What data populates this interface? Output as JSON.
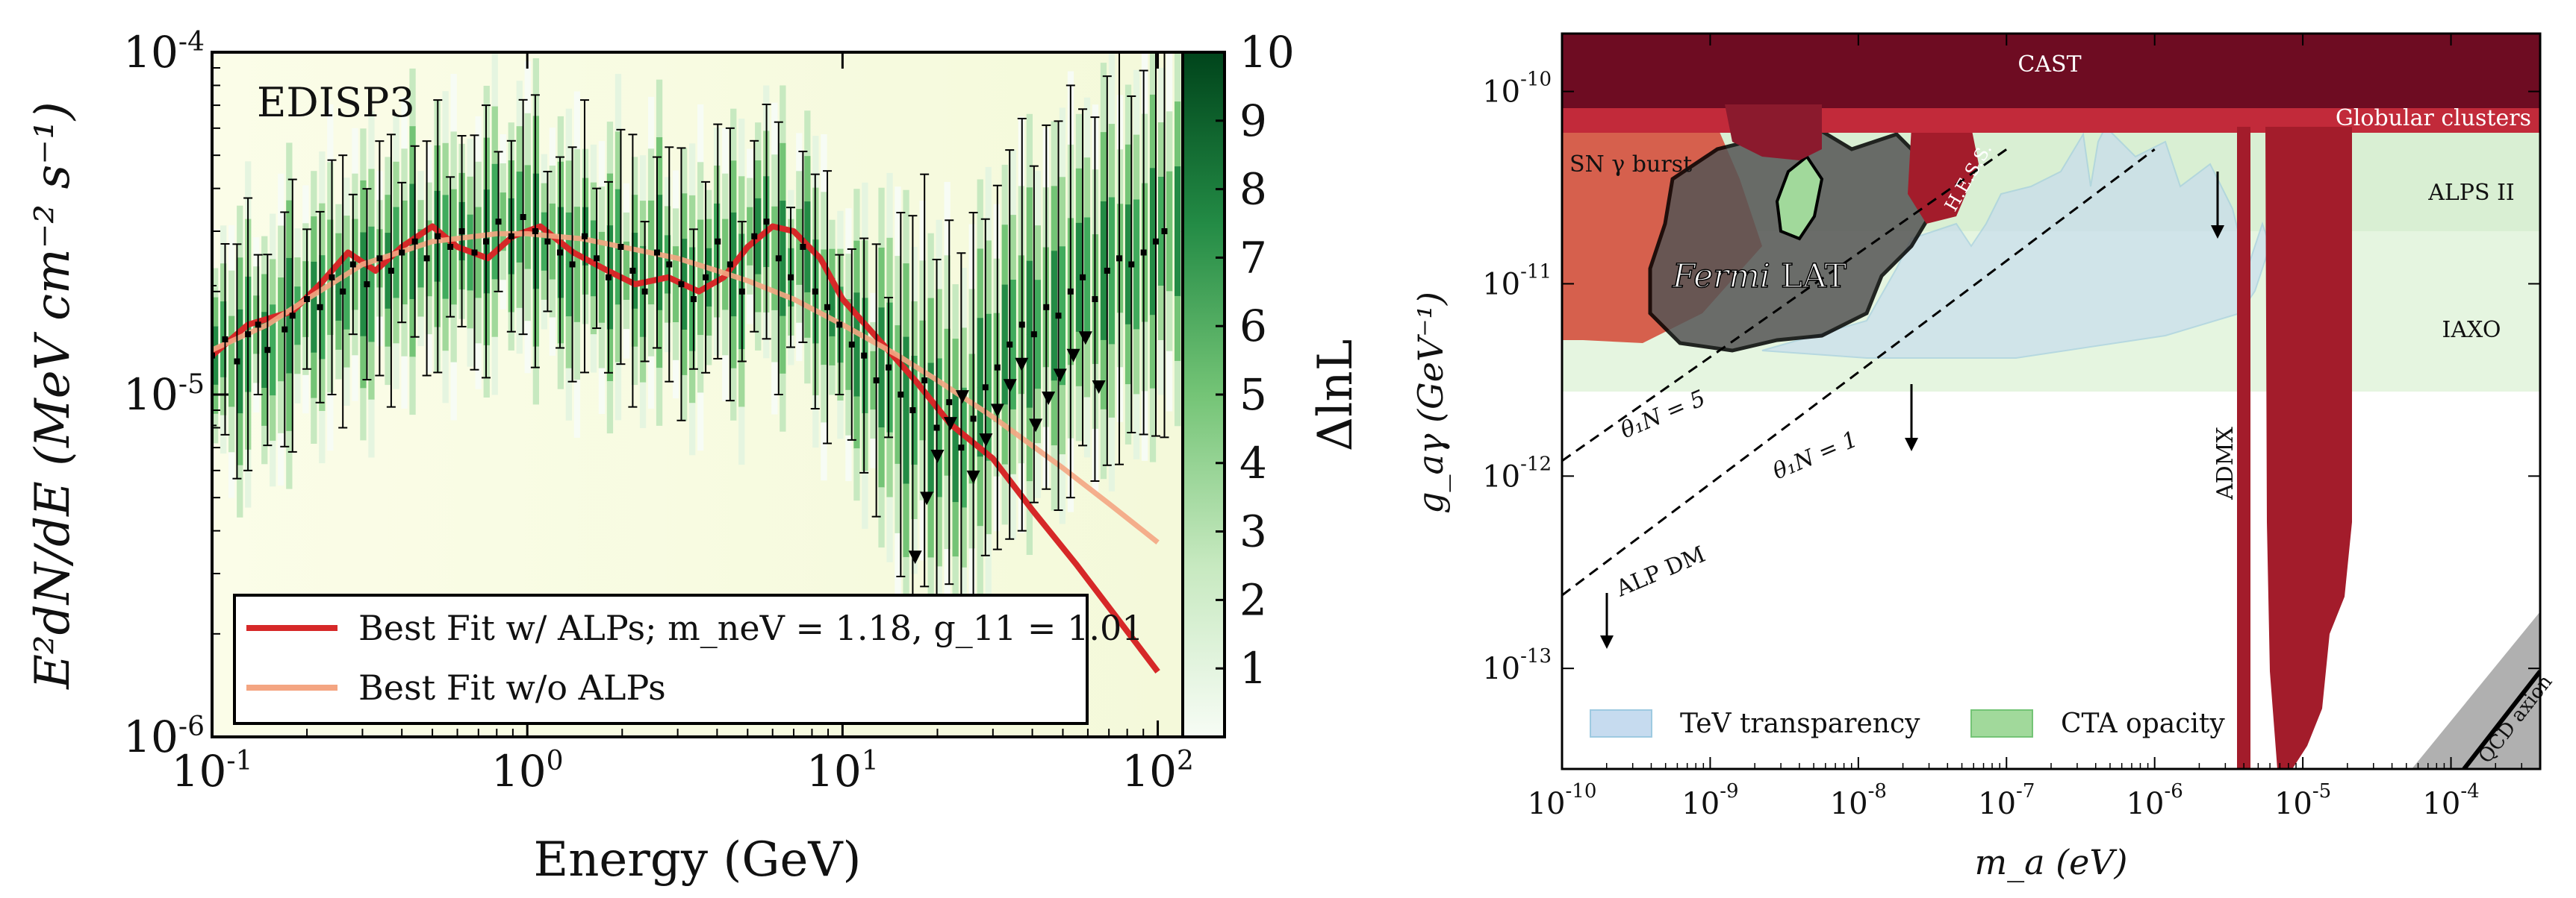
{
  "chart_data": [
    {
      "type": "line",
      "panel_label": "EDISP3",
      "xlabel": "Energy (GeV)",
      "ylabel": "E²dN/dE (MeV cm⁻² s⁻¹)",
      "xscale": "log",
      "yscale": "log",
      "xlim": [
        0.1,
        120
      ],
      "ylim": [
        1e-06,
        0.0001
      ],
      "x_ticks": [
        {
          "base": "10",
          "exp": "-1",
          "value": 0.1
        },
        {
          "base": "10",
          "exp": "0",
          "value": 1
        },
        {
          "base": "10",
          "exp": "1",
          "value": 10
        },
        {
          "base": "10",
          "exp": "2",
          "value": 100
        }
      ],
      "y_ticks": [
        {
          "base": "10",
          "exp": "-6",
          "value": 1e-06
        },
        {
          "base": "10",
          "exp": "-5",
          "value": 1e-05
        },
        {
          "base": "10",
          "exp": "-4",
          "value": 0.0001
        }
      ],
      "colorbar": {
        "label": "ΔlnL",
        "min": 0,
        "max": 10,
        "ticks": [
          "1",
          "2",
          "3",
          "4",
          "5",
          "6",
          "7",
          "8",
          "9",
          "10"
        ],
        "colormap": "Greens"
      },
      "series": [
        {
          "name": "Best Fit w/ ALPs",
          "legend_label": "Best Fit w/ ALPs; m_neV = 1.18, g_11 = 1.01",
          "color": "#d62828",
          "x": [
            0.1,
            0.13,
            0.18,
            0.22,
            0.27,
            0.33,
            0.4,
            0.5,
            0.6,
            0.75,
            0.9,
            1.1,
            1.4,
            1.8,
            2.2,
            2.8,
            3.5,
            4.2,
            5,
            6,
            7,
            8.5,
            10,
            13,
            17,
            22,
            30,
            40,
            55,
            75,
            100
          ],
          "y": [
            1.3e-05,
            1.6e-05,
            1.75e-05,
            2.1e-05,
            2.6e-05,
            2.3e-05,
            2.7e-05,
            3.1e-05,
            2.7e-05,
            2.5e-05,
            2.9e-05,
            3.1e-05,
            2.6e-05,
            2.3e-05,
            2.1e-05,
            2.2e-05,
            2e-05,
            2.2e-05,
            2.7e-05,
            3.1e-05,
            3e-05,
            2.5e-05,
            1.9e-05,
            1.45e-05,
            1.1e-05,
            8.2e-06,
            6.5e-06,
            4.6e-06,
            3.2e-06,
            2.2e-06,
            1.55e-06
          ]
        },
        {
          "name": "Best Fit w/o ALPs",
          "legend_label": "Best Fit w/o ALPs",
          "color": "#f4a582",
          "x": [
            0.1,
            0.15,
            0.2,
            0.3,
            0.5,
            0.8,
            1,
            1.5,
            2,
            3,
            4,
            5,
            7,
            10,
            15,
            20,
            30,
            50,
            70,
            100
          ],
          "y": [
            1.35e-05,
            1.6e-05,
            1.9e-05,
            2.4e-05,
            2.8e-05,
            2.95e-05,
            2.95e-05,
            2.85e-05,
            2.7e-05,
            2.5e-05,
            2.3e-05,
            2.15e-05,
            1.9e-05,
            1.6e-05,
            1.3e-05,
            1.1e-05,
            8.6e-06,
            6.1e-06,
            4.8e-06,
            3.7e-06
          ]
        }
      ],
      "data_points": {
        "x": [
          0.1,
          0.11,
          0.12,
          0.13,
          0.14,
          0.15,
          0.17,
          0.18,
          0.2,
          0.22,
          0.24,
          0.26,
          0.28,
          0.31,
          0.34,
          0.37,
          0.4,
          0.44,
          0.48,
          0.52,
          0.57,
          0.62,
          0.68,
          0.74,
          0.81,
          0.89,
          0.97,
          1.06,
          1.16,
          1.27,
          1.39,
          1.52,
          1.66,
          1.81,
          1.98,
          2.16,
          2.36,
          2.58,
          2.82,
          3.08,
          3.37,
          3.68,
          4.02,
          4.4,
          4.8,
          5.25,
          5.74,
          6.27,
          6.85,
          7.49,
          8.19,
          8.95,
          9.78,
          10.7,
          11.7,
          12.8,
          14,
          15.3,
          16.7,
          18.2,
          19.9,
          21.8,
          23.8,
          26,
          28.4,
          31,
          33.9,
          37.1,
          40.5,
          44.3,
          48.4,
          52.9,
          57.8,
          63.2,
          69.1,
          75.5,
          82.5,
          90.2,
          98.6,
          105
        ],
        "y": [
          1.3e-05,
          1.45e-05,
          1.25e-05,
          1.5e-05,
          1.6e-05,
          1.35e-05,
          1.55e-05,
          1.7e-05,
          1.9e-05,
          1.8e-05,
          2.2e-05,
          2e-05,
          2.4e-05,
          2.1e-05,
          2.5e-05,
          2.3e-05,
          2.6e-05,
          2.8e-05,
          2.5e-05,
          2.9e-05,
          2.7e-05,
          3e-05,
          2.6e-05,
          2.8e-05,
          3.2e-05,
          2.9e-05,
          3.3e-05,
          3e-05,
          2.8e-05,
          2.6e-05,
          2.4e-05,
          2.9e-05,
          2.5e-05,
          2.2e-05,
          2.7e-05,
          2.3e-05,
          2e-05,
          2.6e-05,
          2.4e-05,
          2.1e-05,
          1.9e-05,
          2.2e-05,
          2.8e-05,
          2.4e-05,
          2e-05,
          2.9e-05,
          3.2e-05,
          2.5e-05,
          2.2e-05,
          2.7e-05,
          2e-05,
          1.8e-05,
          1.6e-05,
          1.4e-05,
          1.3e-05,
          1.1e-05,
          1.2e-05,
          1e-05,
          9e-06,
          1.1e-05,
          8e-06,
          9.5e-06,
          7e-06,
          8.5e-06,
          1.05e-05,
          1.2e-05,
          1.4e-05,
          1.6e-05,
          1.5e-05,
          1.8e-05,
          1.7e-05,
          2e-05,
          2.2e-05,
          1.9e-05,
          2.3e-05,
          2.5e-05,
          2.4e-05,
          2.6e-05,
          2.8e-05,
          3e-05
        ]
      },
      "upper_limits_x": [
        17,
        18.5,
        20,
        22,
        24,
        26,
        28.5,
        31,
        34,
        37,
        41,
        45,
        49,
        54,
        59,
        65
      ]
    },
    {
      "type": "area",
      "xlabel": "m_a (eV)",
      "ylabel": "g_aγ (GeV⁻¹)",
      "xscale": "log",
      "yscale": "log",
      "xlim": [
        1e-10,
        0.0004
      ],
      "ylim": [
        3e-14,
        2e-10
      ],
      "x_ticks": [
        {
          "base": "10",
          "exp": "-10"
        },
        {
          "base": "10",
          "exp": "-9"
        },
        {
          "base": "10",
          "exp": "-8"
        },
        {
          "base": "10",
          "exp": "-7"
        },
        {
          "base": "10",
          "exp": "-6"
        },
        {
          "base": "10",
          "exp": "-5"
        },
        {
          "base": "10",
          "exp": "-4"
        }
      ],
      "y_ticks": [
        {
          "base": "10",
          "exp": "-10"
        },
        {
          "base": "10",
          "exp": "-11"
        },
        {
          "base": "10",
          "exp": "-12"
        },
        {
          "base": "10",
          "exp": "-13"
        }
      ],
      "regions": {
        "cast": "CAST",
        "globular": "Globular clusters",
        "sn": "SN γ burst",
        "hess": "H.E.S.S.",
        "fermi_italic": "Fermi",
        "fermi_rest": " LAT",
        "alps": "ALPS II",
        "iaxo": "IAXO",
        "admx": "ADMX",
        "qcd": "QCD axion"
      },
      "lines": [
        {
          "label": "θ₁N = 5",
          "x": [
            1e-10,
            1e-07
          ],
          "y": [
            1.2e-12,
            5e-11
          ]
        },
        {
          "label": "θ₁N = 1",
          "x": [
            1e-10,
            1e-06
          ],
          "y": [
            2.4e-13,
            5e-11
          ]
        },
        {
          "label": "ALP DM"
        }
      ],
      "legend": [
        "TeV transparency",
        "CTA opacity"
      ]
    }
  ],
  "colors": {
    "alps_red": "#d62828",
    "noalps_salmon": "#f4a582",
    "cast": "#6e0c22",
    "limits": "#a31c2b",
    "sn": "#d6604d",
    "fermi": "#4d4d4d",
    "tev": "#c6dbef",
    "cta": "#a1d99b"
  }
}
